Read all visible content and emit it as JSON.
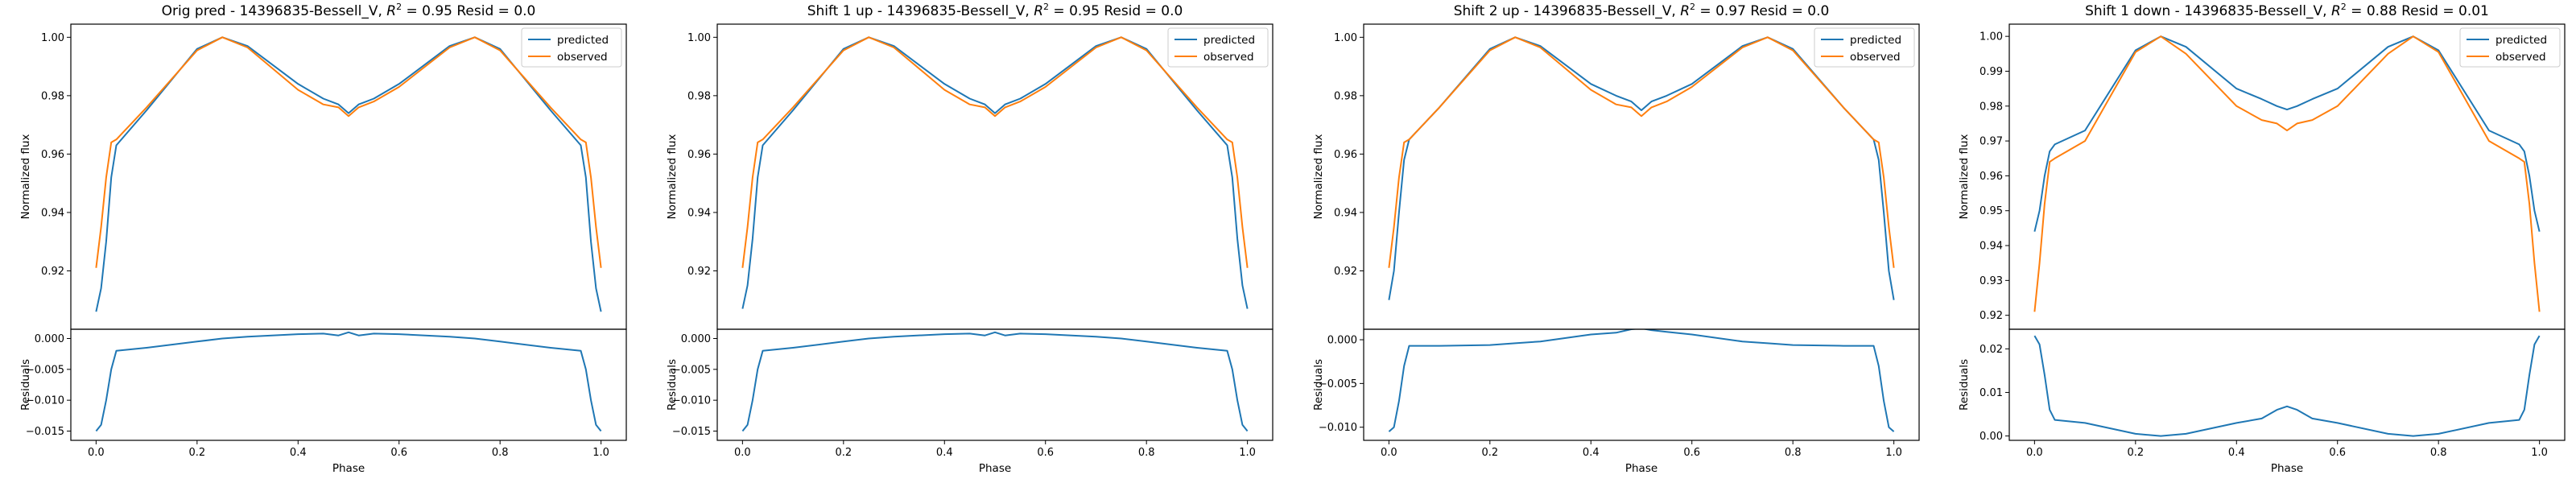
{
  "chart_data": [
    {
      "type": "line",
      "title": "Orig pred - 14396835-Bessell_V, R² = 0.95 Resid = 0.0",
      "title_parts": {
        "prefix": "Orig pred - 14396835-Bessell_V, ",
        "r": "R",
        "sup": "2",
        "suffix": " = 0.95 Resid = 0.0"
      },
      "xlabel": "Phase",
      "ylabel_top": "Normalized flux",
      "ylabel_bottom": "Residuals",
      "xlim": [
        -0.05,
        1.05
      ],
      "x_ticks": [
        0.0,
        0.2,
        0.4,
        0.6,
        0.8,
        1.0
      ],
      "x_tick_labels": [
        "0.0",
        "0.2",
        "0.4",
        "0.6",
        "0.8",
        "1.0"
      ],
      "ylim_top": [
        0.9,
        1.0045
      ],
      "y_ticks_top": [
        0.92,
        0.94,
        0.96,
        0.98,
        1.0
      ],
      "y_tick_labels_top": [
        "0.92",
        "0.94",
        "0.96",
        "0.98",
        "1.00"
      ],
      "ylim_bottom": [
        -0.0165,
        0.0015
      ],
      "y_ticks_bottom": [
        0.0,
        -0.005,
        -0.01,
        -0.015
      ],
      "y_tick_labels_bottom": [
        "0.000",
        "−0.005",
        "−0.010",
        "−0.015"
      ],
      "legend": {
        "position": "top-right",
        "entries": [
          "predicted",
          "observed"
        ]
      },
      "phase": [
        0.0,
        0.01,
        0.02,
        0.03,
        0.04,
        0.1,
        0.2,
        0.25,
        0.3,
        0.4,
        0.45,
        0.48,
        0.5,
        0.52,
        0.55,
        0.6,
        0.7,
        0.75,
        0.8,
        0.9,
        0.96,
        0.97,
        0.98,
        0.99,
        1.0
      ],
      "series": [
        {
          "name": "predicted",
          "values": [
            0.906,
            0.914,
            0.93,
            0.952,
            0.963,
            0.975,
            0.996,
            1.0,
            0.997,
            0.984,
            0.979,
            0.977,
            0.974,
            0.977,
            0.979,
            0.984,
            0.997,
            1.0,
            0.996,
            0.975,
            0.963,
            0.952,
            0.93,
            0.914,
            0.906
          ]
        },
        {
          "name": "observed",
          "values": [
            0.921,
            0.935,
            0.952,
            0.964,
            0.965,
            0.976,
            0.9955,
            1.0,
            0.9965,
            0.982,
            0.977,
            0.976,
            0.973,
            0.976,
            0.978,
            0.983,
            0.9965,
            1.0,
            0.9955,
            0.976,
            0.965,
            0.964,
            0.952,
            0.935,
            0.921
          ]
        },
        {
          "name": "residuals",
          "values": [
            -0.015,
            -0.014,
            -0.01,
            -0.005,
            -0.002,
            -0.0015,
            -0.0005,
            0.0,
            0.0003,
            0.0007,
            0.0008,
            0.0005,
            0.001,
            0.0005,
            0.0008,
            0.0007,
            0.0003,
            0.0,
            -0.0005,
            -0.0015,
            -0.002,
            -0.005,
            -0.01,
            -0.014,
            -0.015
          ]
        }
      ]
    },
    {
      "type": "line",
      "title": "Shift 1 up - 14396835-Bessell_V, R² = 0.95 Resid = 0.0",
      "title_parts": {
        "prefix": "Shift 1 up - 14396835-Bessell_V, ",
        "r": "R",
        "sup": "2",
        "suffix": " = 0.95 Resid = 0.0"
      },
      "xlabel": "Phase",
      "ylabel_top": "Normalized flux",
      "ylabel_bottom": "Residuals",
      "xlim": [
        -0.05,
        1.05
      ],
      "x_ticks": [
        0.0,
        0.2,
        0.4,
        0.6,
        0.8,
        1.0
      ],
      "x_tick_labels": [
        "0.0",
        "0.2",
        "0.4",
        "0.6",
        "0.8",
        "1.0"
      ],
      "ylim_top": [
        0.9,
        1.0045
      ],
      "y_ticks_top": [
        0.92,
        0.94,
        0.96,
        0.98,
        1.0
      ],
      "y_tick_labels_top": [
        "0.92",
        "0.94",
        "0.96",
        "0.98",
        "1.00"
      ],
      "ylim_bottom": [
        -0.0165,
        0.0015
      ],
      "y_ticks_bottom": [
        0.0,
        -0.005,
        -0.01,
        -0.015
      ],
      "y_tick_labels_bottom": [
        "0.000",
        "−0.005",
        "−0.010",
        "−0.015"
      ],
      "legend": {
        "position": "top-right",
        "entries": [
          "predicted",
          "observed"
        ]
      },
      "phase": [
        0.0,
        0.01,
        0.02,
        0.03,
        0.04,
        0.1,
        0.2,
        0.25,
        0.3,
        0.4,
        0.45,
        0.48,
        0.5,
        0.52,
        0.55,
        0.6,
        0.7,
        0.75,
        0.8,
        0.9,
        0.96,
        0.97,
        0.98,
        0.99,
        1.0
      ],
      "series": [
        {
          "name": "predicted",
          "values": [
            0.907,
            0.915,
            0.931,
            0.952,
            0.963,
            0.975,
            0.996,
            1.0,
            0.997,
            0.984,
            0.979,
            0.977,
            0.974,
            0.977,
            0.979,
            0.984,
            0.997,
            1.0,
            0.996,
            0.975,
            0.963,
            0.952,
            0.931,
            0.915,
            0.907
          ]
        },
        {
          "name": "observed",
          "values": [
            0.921,
            0.935,
            0.952,
            0.964,
            0.965,
            0.976,
            0.9955,
            1.0,
            0.9965,
            0.982,
            0.977,
            0.976,
            0.973,
            0.976,
            0.978,
            0.983,
            0.9965,
            1.0,
            0.9955,
            0.976,
            0.965,
            0.964,
            0.952,
            0.935,
            0.921
          ]
        },
        {
          "name": "residuals",
          "values": [
            -0.015,
            -0.014,
            -0.01,
            -0.005,
            -0.002,
            -0.0015,
            -0.0005,
            0.0,
            0.0003,
            0.0007,
            0.0008,
            0.0005,
            0.001,
            0.0005,
            0.0008,
            0.0007,
            0.0003,
            0.0,
            -0.0005,
            -0.0015,
            -0.002,
            -0.005,
            -0.01,
            -0.014,
            -0.015
          ]
        }
      ]
    },
    {
      "type": "line",
      "title": "Shift 2 up - 14396835-Bessell_V, R² = 0.97 Resid = 0.0",
      "title_parts": {
        "prefix": "Shift 2 up - 14396835-Bessell_V, ",
        "r": "R",
        "sup": "2",
        "suffix": " = 0.97 Resid = 0.0"
      },
      "xlabel": "Phase",
      "ylabel_top": "Normalized flux",
      "ylabel_bottom": "Residuals",
      "xlim": [
        -0.05,
        1.05
      ],
      "x_ticks": [
        0.0,
        0.2,
        0.4,
        0.6,
        0.8,
        1.0
      ],
      "x_tick_labels": [
        "0.0",
        "0.2",
        "0.4",
        "0.6",
        "0.8",
        "1.0"
      ],
      "ylim_top": [
        0.9,
        1.0045
      ],
      "y_ticks_top": [
        0.92,
        0.94,
        0.96,
        0.98,
        1.0
      ],
      "y_tick_labels_top": [
        "0.92",
        "0.94",
        "0.96",
        "0.98",
        "1.00"
      ],
      "ylim_bottom": [
        -0.0115,
        0.0012
      ],
      "y_ticks_bottom": [
        0.0,
        -0.005,
        -0.01
      ],
      "y_tick_labels_bottom": [
        "0.000",
        "−0.005",
        "−0.010"
      ],
      "legend": {
        "position": "top-right",
        "entries": [
          "predicted",
          "observed"
        ]
      },
      "phase": [
        0.0,
        0.01,
        0.02,
        0.03,
        0.04,
        0.1,
        0.2,
        0.25,
        0.3,
        0.4,
        0.45,
        0.48,
        0.5,
        0.52,
        0.55,
        0.6,
        0.7,
        0.75,
        0.8,
        0.9,
        0.96,
        0.97,
        0.98,
        0.99,
        1.0
      ],
      "series": [
        {
          "name": "predicted",
          "values": [
            0.91,
            0.92,
            0.94,
            0.958,
            0.965,
            0.976,
            0.996,
            1.0,
            0.997,
            0.984,
            0.98,
            0.978,
            0.975,
            0.978,
            0.98,
            0.984,
            0.997,
            1.0,
            0.996,
            0.976,
            0.965,
            0.958,
            0.94,
            0.92,
            0.91
          ]
        },
        {
          "name": "observed",
          "values": [
            0.921,
            0.935,
            0.952,
            0.964,
            0.965,
            0.976,
            0.9955,
            1.0,
            0.9965,
            0.982,
            0.977,
            0.976,
            0.973,
            0.976,
            0.978,
            0.983,
            0.9965,
            1.0,
            0.9955,
            0.976,
            0.965,
            0.964,
            0.952,
            0.935,
            0.921
          ]
        },
        {
          "name": "residuals",
          "values": [
            -0.0105,
            -0.01,
            -0.007,
            -0.003,
            -0.0007,
            -0.0007,
            -0.0006,
            -0.0004,
            -0.0002,
            0.0006,
            0.0008,
            0.0012,
            0.0013,
            0.0011,
            0.0009,
            0.0006,
            -0.0002,
            -0.0004,
            -0.0006,
            -0.0007,
            -0.0007,
            -0.003,
            -0.007,
            -0.01,
            -0.0105
          ]
        }
      ]
    },
    {
      "type": "line",
      "title": "Shift 1 down - 14396835-Bessell_V, R² = 0.88 Resid = 0.01",
      "title_parts": {
        "prefix": "Shift 1 down - 14396835-Bessell_V, ",
        "r": "R",
        "sup": "2",
        "suffix": " = 0.88 Resid = 0.01"
      },
      "xlabel": "Phase",
      "ylabel_top": "Normalized flux",
      "ylabel_bottom": "Residuals",
      "xlim": [
        -0.05,
        1.05
      ],
      "x_ticks": [
        0.0,
        0.2,
        0.4,
        0.6,
        0.8,
        1.0
      ],
      "x_tick_labels": [
        "0.0",
        "0.2",
        "0.4",
        "0.6",
        "0.8",
        "1.0"
      ],
      "ylim_top": [
        0.916,
        1.0035
      ],
      "y_ticks_top": [
        0.92,
        0.93,
        0.94,
        0.95,
        0.96,
        0.97,
        0.98,
        0.99,
        1.0
      ],
      "y_tick_labels_top": [
        "0.92",
        "0.93",
        "0.94",
        "0.95",
        "0.96",
        "0.97",
        "0.98",
        "0.99",
        "1.00"
      ],
      "ylim_bottom": [
        -0.001,
        0.0245
      ],
      "y_ticks_bottom": [
        0.0,
        0.01,
        0.02
      ],
      "y_tick_labels_bottom": [
        "0.00",
        "0.01",
        "0.02"
      ],
      "legend": {
        "position": "top-right",
        "entries": [
          "predicted",
          "observed"
        ]
      },
      "phase": [
        0.0,
        0.01,
        0.02,
        0.03,
        0.04,
        0.1,
        0.2,
        0.25,
        0.3,
        0.4,
        0.45,
        0.48,
        0.5,
        0.52,
        0.55,
        0.6,
        0.7,
        0.75,
        0.8,
        0.9,
        0.96,
        0.97,
        0.98,
        0.99,
        1.0
      ],
      "series": [
        {
          "name": "predicted",
          "values": [
            0.944,
            0.95,
            0.96,
            0.967,
            0.969,
            0.973,
            0.996,
            1.0,
            0.997,
            0.985,
            0.982,
            0.98,
            0.979,
            0.98,
            0.982,
            0.985,
            0.997,
            1.0,
            0.996,
            0.973,
            0.969,
            0.967,
            0.96,
            0.95,
            0.944
          ]
        },
        {
          "name": "observed",
          "values": [
            0.921,
            0.935,
            0.952,
            0.964,
            0.965,
            0.97,
            0.9955,
            1.0,
            0.995,
            0.98,
            0.976,
            0.975,
            0.973,
            0.975,
            0.976,
            0.98,
            0.995,
            1.0,
            0.9955,
            0.97,
            0.965,
            0.964,
            0.952,
            0.935,
            0.921
          ]
        },
        {
          "name": "residuals",
          "values": [
            0.023,
            0.021,
            0.014,
            0.006,
            0.0037,
            0.003,
            0.0005,
            0.0,
            0.0005,
            0.003,
            0.004,
            0.006,
            0.0068,
            0.006,
            0.004,
            0.003,
            0.0005,
            0.0,
            0.0005,
            0.003,
            0.0037,
            0.006,
            0.014,
            0.021,
            0.023
          ]
        }
      ]
    }
  ],
  "colors": {
    "predicted": "#1f77b4",
    "observed": "#ff7f0e",
    "axes": "#000000",
    "legend_border": "#cccccc"
  }
}
